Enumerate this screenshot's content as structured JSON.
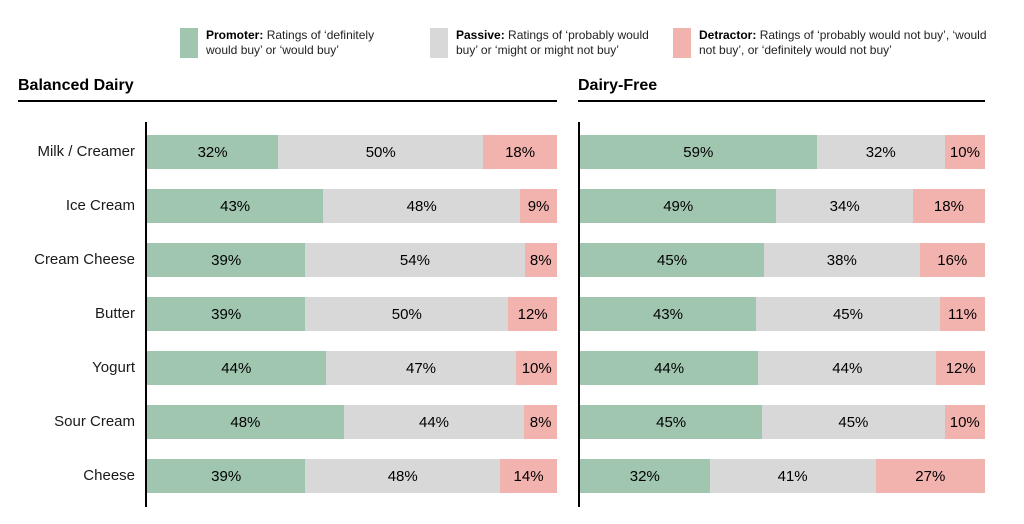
{
  "legend": {
    "items": [
      {
        "name": "Promoter",
        "term": "Promoter:",
        "description": "Ratings of ‘definitely would buy’ or ‘would buy’",
        "color": "#a0c6b0"
      },
      {
        "name": "Passive",
        "term": "Passive:",
        "description": "Ratings of ‘probably would buy’ or ‘might or might not buy’",
        "color": "#d8d8d8"
      },
      {
        "name": "Detractor",
        "term": "Detractor:",
        "description": "Ratings of ‘probably would not buy’, ‘would not buy’, or ‘definitely would not buy’",
        "color": "#f2b2ae"
      }
    ]
  },
  "chart_data": {
    "type": "bar",
    "orientation": "horizontal",
    "stacked": true,
    "unit": "%",
    "axis_range": [
      0,
      100
    ],
    "grid": false,
    "legend_position": "top",
    "categories": [
      "Milk / Creamer",
      "Ice Cream",
      "Cream Cheese",
      "Butter",
      "Yogurt",
      "Sour Cream",
      "Cheese"
    ],
    "series_names": [
      "Promoter",
      "Passive",
      "Detractor"
    ],
    "series_colors": [
      "#a0c6b0",
      "#d8d8d8",
      "#f2b2ae"
    ],
    "panels": [
      {
        "title": "Balanced Dairy",
        "series": [
          {
            "name": "Promoter",
            "values": [
              32,
              43,
              39,
              39,
              44,
              48,
              39
            ]
          },
          {
            "name": "Passive",
            "values": [
              50,
              48,
              54,
              50,
              47,
              44,
              48
            ]
          },
          {
            "name": "Detractor",
            "values": [
              18,
              9,
              8,
              12,
              10,
              8,
              14
            ]
          }
        ]
      },
      {
        "title": "Dairy-Free",
        "series": [
          {
            "name": "Promoter",
            "values": [
              59,
              49,
              45,
              43,
              44,
              45,
              32
            ]
          },
          {
            "name": "Passive",
            "values": [
              32,
              34,
              38,
              45,
              44,
              45,
              41
            ]
          },
          {
            "name": "Detractor",
            "values": [
              10,
              18,
              16,
              11,
              12,
              10,
              27
            ]
          }
        ]
      }
    ]
  }
}
